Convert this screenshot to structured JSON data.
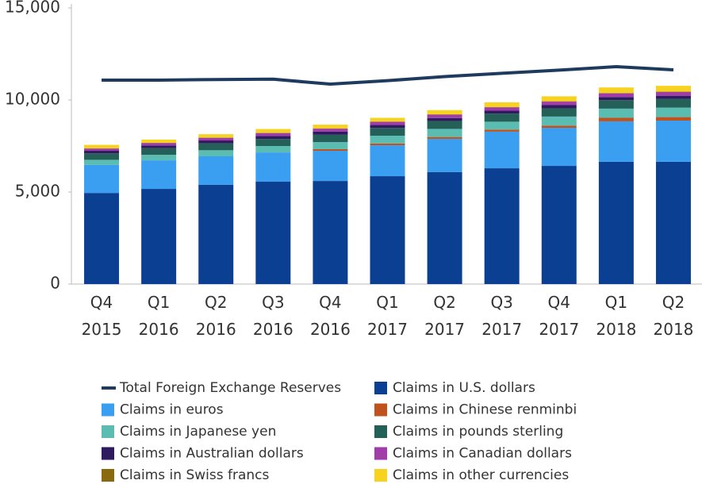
{
  "chart_data": {
    "type": "bar",
    "stacked": true,
    "categories": [
      "Q4 2015",
      "Q1 2016",
      "Q2 2016",
      "Q3 2016",
      "Q4 2016",
      "Q1 2017",
      "Q2 2017",
      "Q3 2017",
      "Q4 2017",
      "Q1 2018",
      "Q2 2018"
    ],
    "ylim": [
      0,
      15000
    ],
    "yticks": [
      0,
      {
        "value": 5000,
        "label": "5,000"
      },
      {
        "value": 10000,
        "label": "10,000"
      },
      {
        "value": 15000,
        "label": "15,000"
      }
    ],
    "grid": false,
    "line_series": {
      "name": "Total Foreign Exchange Reserves",
      "color": "#1f3a5f",
      "values": [
        11080,
        11080,
        11110,
        11130,
        10860,
        11050,
        11270,
        11450,
        11620,
        11810,
        11640
      ]
    },
    "series": [
      {
        "name": "Claims in U.S. dollars",
        "color": "#0b3f92",
        "values": [
          4950,
          5170,
          5390,
          5560,
          5600,
          5860,
          6080,
          6290,
          6420,
          6640,
          6640
        ]
      },
      {
        "name": "Claims in euros",
        "color": "#3a9ff0",
        "values": [
          1520,
          1550,
          1550,
          1590,
          1640,
          1680,
          1810,
          1990,
          2070,
          2200,
          2240
        ]
      },
      {
        "name": "Claims in Chinese renminbi",
        "color": "#c0521e",
        "values": [
          0,
          0,
          0,
          0,
          90,
          100,
          100,
          110,
          120,
          190,
          190
        ]
      },
      {
        "name": "Claims in Japanese yen",
        "color": "#5bbcb2",
        "values": [
          280,
          300,
          330,
          350,
          380,
          420,
          440,
          430,
          490,
          500,
          520
        ]
      },
      {
        "name": "Claims in pounds sterling",
        "color": "#245f58",
        "values": [
          350,
          360,
          370,
          380,
          400,
          420,
          430,
          440,
          450,
          460,
          470
        ]
      },
      {
        "name": "Claims in Australian dollars",
        "color": "#2e1a5e",
        "values": [
          140,
          150,
          160,
          170,
          170,
          160,
          160,
          160,
          170,
          170,
          170
        ]
      },
      {
        "name": "Claims in Canadian dollars",
        "color": "#a23ca8",
        "values": [
          120,
          130,
          140,
          150,
          160,
          170,
          180,
          180,
          190,
          200,
          200
        ]
      },
      {
        "name": "Claims in Swiss francs",
        "color": "#8a6a10",
        "values": [
          20,
          20,
          20,
          20,
          20,
          20,
          20,
          20,
          20,
          20,
          20
        ]
      },
      {
        "name": "Claims in other currencies",
        "color": "#f7d21e",
        "values": [
          180,
          170,
          180,
          200,
          200,
          200,
          230,
          250,
          270,
          300,
          320
        ]
      }
    ]
  }
}
